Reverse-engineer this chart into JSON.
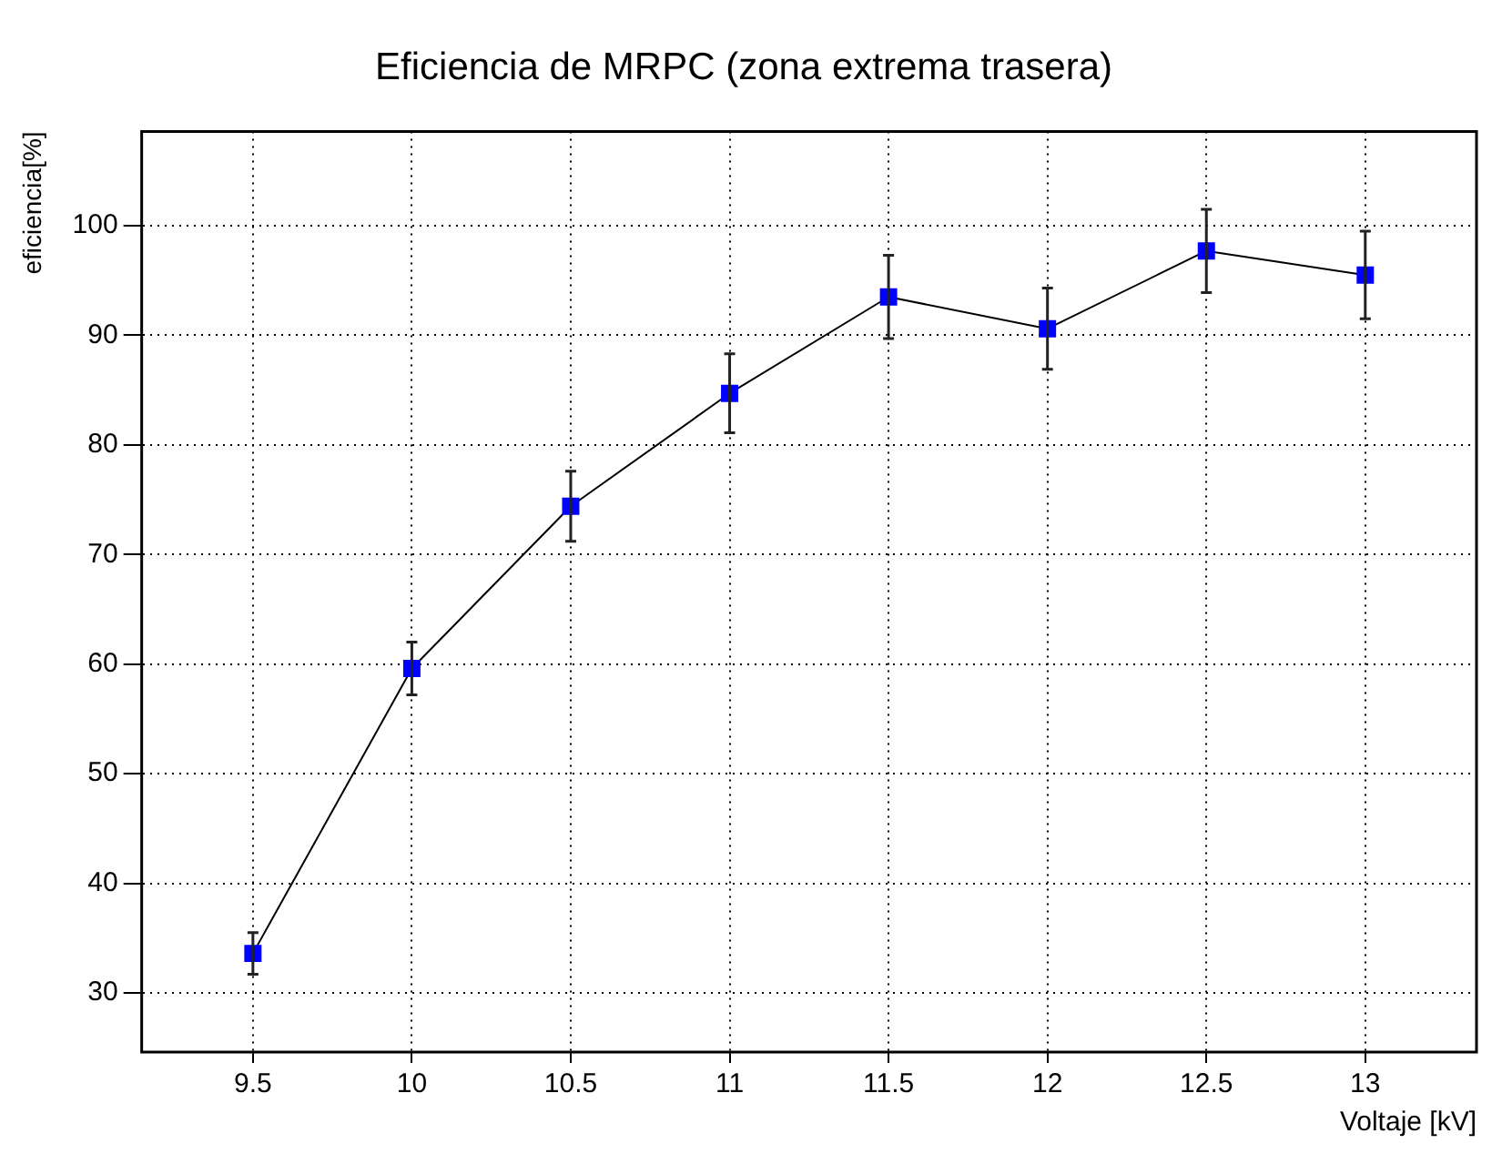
{
  "chart_data": {
    "type": "scatter",
    "title": "Eficiencia de MRPC (zona extrema trasera)",
    "xlabel": "Voltaje [kV]",
    "ylabel": "eficiencia[%]",
    "x": [
      9.5,
      10,
      10.5,
      11,
      11.5,
      12,
      12.5,
      13
    ],
    "series": [
      {
        "type": "line",
        "color": "#0000ff",
        "values": [
          33.6,
          59.6,
          74.4,
          84.7,
          93.5,
          90.6,
          97.7,
          95.5
        ],
        "errors": [
          1.9,
          2.4,
          3.2,
          3.6,
          3.8,
          3.7,
          3.8,
          4.0
        ]
      }
    ],
    "xlim": [
      9.15,
      13.35
    ],
    "xticks": [
      9.5,
      10,
      10.5,
      11,
      11.5,
      12,
      12.5,
      13
    ],
    "ylim": [
      24.6,
      108.6
    ],
    "yticks": [
      30,
      40,
      50,
      60,
      70,
      80,
      90,
      100
    ],
    "grid": true,
    "marker": "square",
    "line_style": "solid",
    "legend": false
  }
}
